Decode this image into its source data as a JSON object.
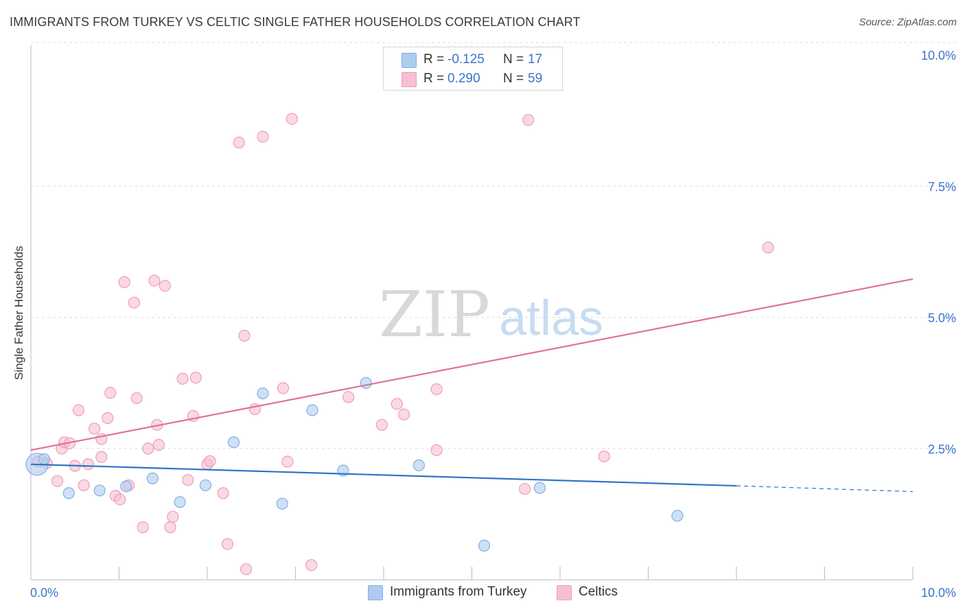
{
  "header": {
    "title": "IMMIGRANTS FROM TURKEY VS CELTIC SINGLE FATHER HOUSEHOLDS CORRELATION CHART",
    "source": "Source: ZipAtlas.com"
  },
  "colors": {
    "turkey_fill": "#aecbf0",
    "turkey_stroke": "#7faee6",
    "turkey_line": "#2f72c8",
    "celtic_fill": "#f7c0d0",
    "celtic_stroke": "#ee9cb6",
    "celtic_line": "#e0709a",
    "tick_label": "#3a74c9",
    "grid": "#dedede"
  },
  "stats": {
    "rows": [
      {
        "r_label": "R =",
        "r_value": "-0.125",
        "n_label": "N =",
        "n_value": "17"
      },
      {
        "r_label": "R =",
        "r_value": "0.290",
        "n_label": "N =",
        "n_value": "59"
      }
    ]
  },
  "legend": {
    "items": [
      {
        "label": "Immigrants from Turkey"
      },
      {
        "label": "Celtics"
      }
    ]
  },
  "chart_data": {
    "type": "scatter",
    "title": "IMMIGRANTS FROM TURKEY VS CELTIC SINGLE FATHER HOUSEHOLDS CORRELATION CHART",
    "xlabel": "",
    "ylabel": "Single Father Households",
    "xlim": [
      0,
      10
    ],
    "ylim": [
      0,
      10.0
    ],
    "x_tick_labels": [
      "0.0%",
      "10.0%"
    ],
    "y_ticks": [
      2.5,
      5.0,
      7.5,
      10.0
    ],
    "y_tick_labels": [
      "2.5%",
      "5.0%",
      "7.5%",
      "10.0%"
    ],
    "grid": "horizontal dashed",
    "legend_position": "bottom-center",
    "watermark": {
      "zip": "ZIP",
      "atlas": "atlas"
    },
    "series": [
      {
        "name": "Immigrants from Turkey",
        "points": [
          [
            0.07,
            2.2,
            "large"
          ],
          [
            0.15,
            2.3
          ],
          [
            0.43,
            1.65
          ],
          [
            0.78,
            1.7
          ],
          [
            1.08,
            1.78
          ],
          [
            1.38,
            1.93
          ],
          [
            1.69,
            1.48
          ],
          [
            1.98,
            1.8
          ],
          [
            2.3,
            2.62
          ],
          [
            2.63,
            3.55
          ],
          [
            2.85,
            1.45
          ],
          [
            3.19,
            3.23
          ],
          [
            3.54,
            2.08
          ],
          [
            3.8,
            3.75
          ],
          [
            4.4,
            2.18
          ],
          [
            5.14,
            0.65
          ],
          [
            5.77,
            1.75
          ],
          [
            7.33,
            1.22
          ]
        ],
        "trend": {
          "x0": 0.0,
          "y0": 2.2,
          "x1": 8.0,
          "y1": 1.79,
          "dash_to_x": 10.0,
          "dash_to_y": 1.68
        }
      },
      {
        "name": "Celtics",
        "points": [
          [
            0.08,
            2.25
          ],
          [
            0.18,
            2.22
          ],
          [
            0.3,
            1.88
          ],
          [
            0.35,
            2.5
          ],
          [
            0.38,
            2.62
          ],
          [
            0.44,
            2.6
          ],
          [
            0.5,
            2.17
          ],
          [
            0.54,
            3.23
          ],
          [
            0.6,
            1.8
          ],
          [
            0.65,
            2.2
          ],
          [
            0.72,
            2.88
          ],
          [
            0.8,
            2.68
          ],
          [
            0.8,
            2.34
          ],
          [
            0.87,
            3.08
          ],
          [
            0.9,
            3.56
          ],
          [
            0.96,
            1.6
          ],
          [
            1.01,
            1.53
          ],
          [
            1.06,
            5.67
          ],
          [
            1.11,
            1.8
          ],
          [
            1.17,
            5.28
          ],
          [
            1.2,
            3.46
          ],
          [
            1.27,
            1.0
          ],
          [
            1.33,
            2.5
          ],
          [
            1.4,
            5.7
          ],
          [
            1.43,
            2.95
          ],
          [
            1.45,
            2.57
          ],
          [
            1.52,
            5.6
          ],
          [
            1.58,
            1.0
          ],
          [
            1.61,
            1.2
          ],
          [
            1.72,
            3.83
          ],
          [
            1.78,
            1.9
          ],
          [
            1.84,
            3.12
          ],
          [
            1.87,
            3.85
          ],
          [
            2.0,
            2.2
          ],
          [
            2.03,
            2.26
          ],
          [
            2.18,
            1.65
          ],
          [
            2.23,
            0.68
          ],
          [
            2.36,
            8.33
          ],
          [
            2.42,
            4.65
          ],
          [
            2.44,
            0.2
          ],
          [
            2.54,
            3.25
          ],
          [
            2.63,
            8.44
          ],
          [
            2.86,
            3.65
          ],
          [
            2.91,
            2.25
          ],
          [
            2.96,
            8.78
          ],
          [
            3.18,
            0.28
          ],
          [
            3.6,
            3.48
          ],
          [
            3.98,
            2.95
          ],
          [
            4.15,
            3.35
          ],
          [
            4.23,
            3.15
          ],
          [
            4.6,
            2.47
          ],
          [
            4.6,
            3.63
          ],
          [
            5.6,
            1.73
          ],
          [
            5.64,
            8.76
          ],
          [
            6.5,
            2.35
          ],
          [
            8.36,
            6.33
          ]
        ],
        "trend": {
          "x0": 0.0,
          "y0": 2.47,
          "x1": 10.0,
          "y1": 5.73
        }
      }
    ]
  }
}
